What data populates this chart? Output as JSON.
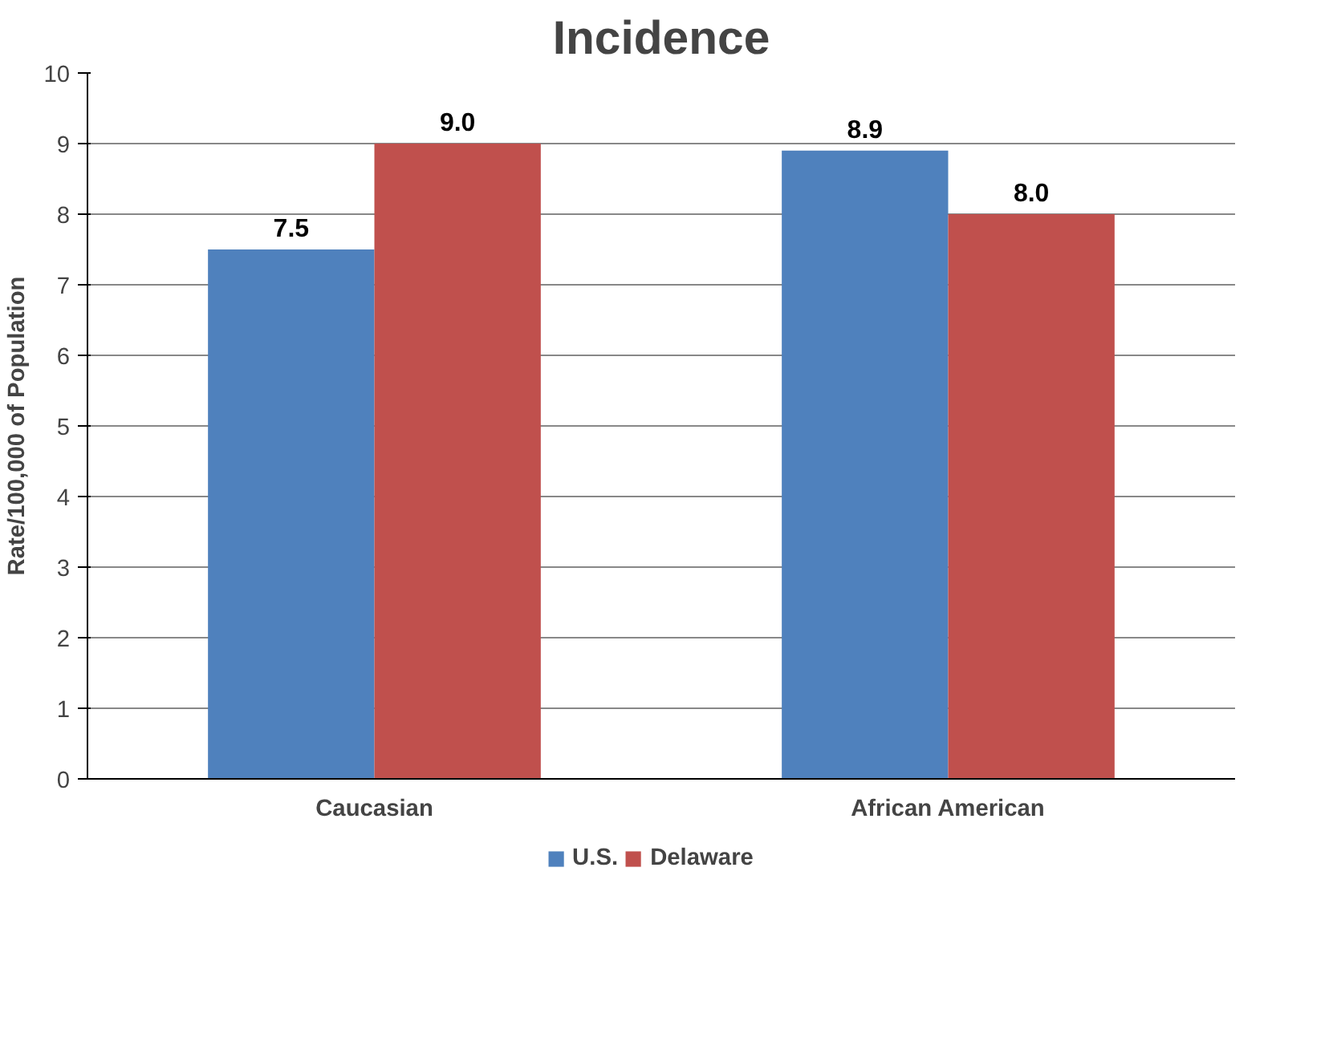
{
  "chart_data": {
    "type": "bar",
    "title": "Incidence",
    "ylabel": "Rate/100,000 of Population",
    "categories": [
      "Caucasian",
      "African American"
    ],
    "series": [
      {
        "name": "U.S.",
        "color": "#4f81bd",
        "values": [
          7.5,
          8.9
        ],
        "value_labels": [
          "7.5",
          "8.9"
        ]
      },
      {
        "name": "Delaware",
        "color": "#c0504d",
        "values": [
          9.0,
          8.0
        ],
        "value_labels": [
          "9.0",
          "8.0"
        ]
      }
    ],
    "ylim": [
      0,
      10
    ],
    "yticks": [
      0,
      1,
      2,
      3,
      4,
      5,
      6,
      7,
      8,
      9,
      10
    ],
    "grid": "y",
    "legend": "bottom"
  }
}
